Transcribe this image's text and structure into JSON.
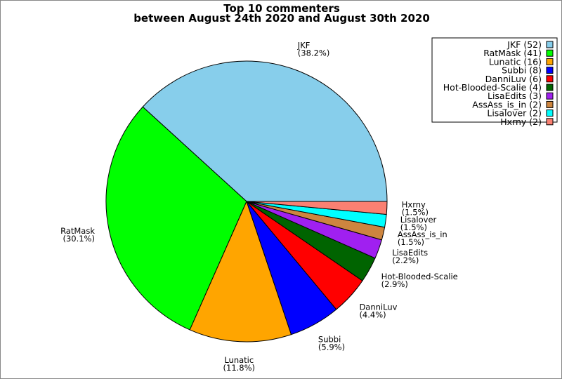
{
  "chart_data": {
    "type": "pie",
    "title": [
      "Top 10 commenters",
      "between August 24th 2020 and August 30th 2020"
    ],
    "categories": [
      "JKF",
      "RatMask",
      "Lunatic",
      "Subbi",
      "DanniLuv",
      "Hot-Blooded-Scalie",
      "LisaEdits",
      "AssAss_is_in",
      "Lisalover",
      "Hxrny"
    ],
    "values": [
      52,
      41,
      16,
      8,
      6,
      4,
      3,
      2,
      2,
      2
    ],
    "slice_labels": [
      "(38.2%)",
      "(30.1%)",
      "(11.8%)",
      "(5.9%)",
      "(4.4%)",
      "(2.9%)",
      "(2.2%)",
      "(1.5%)",
      "(1.5%)",
      "(1.5%)"
    ],
    "legend_entries": [
      "JKF (52)",
      "RatMask (41)",
      "Lunatic (16)",
      "Subbi (8)",
      "DanniLuv (6)",
      "Hot-Blooded-Scalie (4)",
      "LisaEdits (3)",
      "AssAss_is_in (2)",
      "Lisalover (2)",
      "Hxrny (2)"
    ],
    "colors": [
      "#87ceeb",
      "#00ff00",
      "#ffa500",
      "#0000ff",
      "#ff0000",
      "#006400",
      "#a020f0",
      "#cd853f",
      "#00ffff",
      "#fa8072"
    ],
    "start_angle": "east, counter-clockwise",
    "legend_position": "top-right"
  }
}
